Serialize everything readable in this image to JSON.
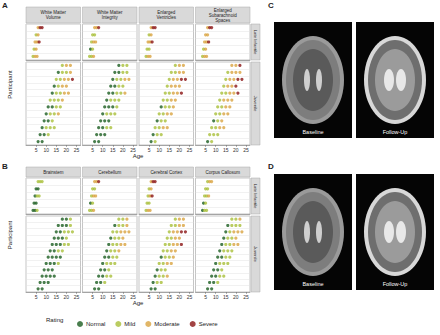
{
  "chart_data": [
    {
      "type": "scatter",
      "label": "A",
      "xlabel": "Age",
      "ylabel": "Participant",
      "xlim": [
        0,
        27
      ],
      "xticks": [
        5,
        10,
        15,
        20,
        25
      ],
      "tick_labels": "x",
      "grid": true,
      "groups": [
        "Late Infantile",
        "Juvenile"
      ],
      "rating_levels": [
        {
          "name": "Normal",
          "color": "#1b5e20"
        },
        {
          "name": "Mild",
          "color": "#a9bf3a"
        },
        {
          "name": "Moderate",
          "color": "#d9a441"
        },
        {
          "name": "Severe",
          "color": "#8b1414"
        }
      ],
      "ages": [
        [
          [
            3.5,
            4.5,
            5.5
          ],
          [
            4,
            5
          ],
          [
            4.5,
            5.5,
            6.5
          ],
          [
            5,
            6
          ],
          [
            6,
            7,
            8
          ]
        ],
        [
          [
            6,
            8
          ],
          [
            7,
            9,
            11
          ],
          [
            8,
            10,
            12,
            14
          ],
          [
            9,
            11,
            13
          ],
          [
            10,
            12,
            14,
            16
          ],
          [
            11,
            13,
            15,
            17
          ],
          [
            12,
            14,
            16,
            18
          ],
          [
            13,
            15,
            17,
            19,
            21
          ],
          [
            14,
            16,
            18,
            20
          ],
          [
            15,
            17,
            19,
            21,
            23
          ],
          [
            16,
            18,
            20,
            22
          ],
          [
            18,
            20,
            22
          ]
        ]
      ],
      "panels": [
        {
          "title": "White Matter\nVolume",
          "ratings": [
            [
              [
                1,
                2,
                2
              ],
              [
                1,
                2
              ],
              [
                2,
                2,
                3
              ],
              [
                1,
                2
              ],
              [
                2,
                3,
                3
              ]
            ],
            [
              [
                0,
                0
              ],
              [
                0,
                0,
                1
              ],
              [
                0,
                1,
                1,
                1
              ],
              [
                0,
                0,
                1
              ],
              [
                0,
                1,
                1,
                2
              ],
              [
                0,
                0,
                1,
                1
              ],
              [
                1,
                1,
                1,
                2
              ],
              [
                0,
                1,
                1,
                2,
                2
              ],
              [
                0,
                1,
                2,
                2
              ],
              [
                1,
                1,
                2,
                2,
                3
              ],
              [
                0,
                1,
                1,
                2
              ],
              [
                1,
                2,
                2
              ]
            ]
          ]
        },
        {
          "title": "White Matter\nIntegrity",
          "ratings": [
            [
              [
                1,
                1,
                2
              ],
              [
                0,
                1
              ],
              [
                1,
                2,
                2
              ],
              [
                1,
                1
              ],
              [
                2,
                2,
                3
              ]
            ],
            [
              [
                0,
                0
              ],
              [
                0,
                0,
                0
              ],
              [
                0,
                0,
                1,
                1
              ],
              [
                0,
                0,
                0
              ],
              [
                0,
                1,
                1,
                1
              ],
              [
                0,
                0,
                0,
                1
              ],
              [
                0,
                1,
                1,
                1
              ],
              [
                0,
                0,
                1,
                1,
                2
              ],
              [
                0,
                0,
                1,
                1
              ],
              [
                0,
                1,
                1,
                2,
                2
              ],
              [
                0,
                0,
                1,
                1
              ],
              [
                0,
                1,
                1
              ]
            ]
          ]
        },
        {
          "title": "Enlarged\nVentricles",
          "ratings": [
            [
              [
                1,
                2,
                2
              ],
              [
                1,
                1
              ],
              [
                2,
                2,
                3
              ],
              [
                1,
                2
              ],
              [
                2,
                3,
                3
              ]
            ],
            [
              [
                0,
                1
              ],
              [
                0,
                1,
                1
              ],
              [
                1,
                1,
                2,
                2
              ],
              [
                0,
                1,
                1
              ],
              [
                1,
                1,
                2,
                2
              ],
              [
                0,
                1,
                1,
                2
              ],
              [
                1,
                1,
                2,
                2
              ],
              [
                1,
                1,
                2,
                2,
                3
              ],
              [
                1,
                2,
                2,
                2
              ],
              [
                1,
                2,
                2,
                3,
                3
              ],
              [
                1,
                1,
                2,
                2
              ],
              [
                1,
                2,
                2
              ]
            ]
          ]
        },
        {
          "title": "Enlarged\nSubarachnoid\nSpaces",
          "ratings": [
            [
              [
                1,
                2,
                2
              ],
              [
                1,
                2
              ],
              [
                2,
                2,
                3
              ],
              [
                2,
                2
              ],
              [
                2,
                3,
                3
              ]
            ],
            [
              [
                0,
                1
              ],
              [
                1,
                1,
                1
              ],
              [
                1,
                1,
                2,
                2
              ],
              [
                0,
                1,
                2
              ],
              [
                1,
                1,
                2,
                2
              ],
              [
                1,
                1,
                2,
                2
              ],
              [
                1,
                2,
                2,
                2
              ],
              [
                1,
                1,
                2,
                2,
                3
              ],
              [
                1,
                2,
                2,
                3
              ],
              [
                1,
                2,
                2,
                3,
                3
              ],
              [
                1,
                2,
                2,
                2
              ],
              [
                2,
                2,
                3
              ]
            ]
          ]
        }
      ]
    },
    {
      "type": "scatter",
      "label": "B",
      "xlabel": "Age",
      "ylabel": "Participant",
      "xlim": [
        0,
        27
      ],
      "xticks": [
        5,
        10,
        15,
        20,
        25
      ],
      "tick_labels": "x",
      "grid": true,
      "legend": "bottom",
      "legend_title": "Rating",
      "groups": [
        "Late Infantile",
        "Juvenile"
      ],
      "rating_levels": [
        {
          "name": "Normal",
          "color": "#1b5e20"
        },
        {
          "name": "Mild",
          "color": "#a9bf3a"
        },
        {
          "name": "Moderate",
          "color": "#d9a441"
        },
        {
          "name": "Severe",
          "color": "#8b1414"
        }
      ],
      "ages": [
        [
          [
            3.5,
            4.5,
            5.5
          ],
          [
            4,
            5
          ],
          [
            4.5,
            5.5,
            6.5
          ],
          [
            5,
            6
          ],
          [
            6,
            7,
            8
          ]
        ],
        [
          [
            6,
            8
          ],
          [
            7,
            9,
            11
          ],
          [
            8,
            10,
            12,
            14
          ],
          [
            9,
            11,
            13
          ],
          [
            10,
            12,
            14,
            16
          ],
          [
            11,
            13,
            15,
            17
          ],
          [
            12,
            14,
            16,
            18
          ],
          [
            13,
            15,
            17,
            19,
            21
          ],
          [
            14,
            16,
            18,
            20
          ],
          [
            15,
            17,
            19,
            21,
            23
          ],
          [
            16,
            18,
            20,
            22
          ],
          [
            18,
            20,
            22
          ]
        ]
      ],
      "panels": [
        {
          "title": "Brainstem",
          "ratings": [
            [
              [
                0,
                0,
                1
              ],
              [
                0,
                0
              ],
              [
                0,
                1,
                1
              ],
              [
                0,
                0
              ],
              [
                1,
                1,
                1
              ]
            ],
            [
              [
                0,
                0
              ],
              [
                0,
                0,
                0
              ],
              [
                0,
                0,
                0,
                0
              ],
              [
                0,
                0,
                0
              ],
              [
                0,
                0,
                0,
                1
              ],
              [
                0,
                0,
                0,
                0
              ],
              [
                0,
                0,
                1,
                1
              ],
              [
                0,
                0,
                0,
                1,
                1
              ],
              [
                0,
                0,
                0,
                1
              ],
              [
                0,
                0,
                1,
                1,
                1
              ],
              [
                0,
                0,
                0,
                1
              ],
              [
                0,
                0,
                1
              ]
            ]
          ]
        },
        {
          "title": "Cerebellum",
          "ratings": [
            [
              [
                1,
                1,
                2
              ],
              [
                0,
                1
              ],
              [
                1,
                2,
                2
              ],
              [
                1,
                1
              ],
              [
                2,
                2,
                3
              ]
            ],
            [
              [
                0,
                0
              ],
              [
                0,
                0,
                1
              ],
              [
                0,
                0,
                1,
                1
              ],
              [
                0,
                0,
                1
              ],
              [
                0,
                1,
                1,
                1
              ],
              [
                0,
                0,
                1,
                1
              ],
              [
                0,
                1,
                1,
                2
              ],
              [
                0,
                1,
                1,
                2,
                2
              ],
              [
                0,
                1,
                1,
                2
              ],
              [
                1,
                1,
                2,
                2,
                2
              ],
              [
                0,
                1,
                1,
                2
              ],
              [
                1,
                1,
                2
              ]
            ]
          ]
        },
        {
          "title": "Cerebral Cortex",
          "ratings": [
            [
              [
                1,
                2,
                2
              ],
              [
                1,
                1
              ],
              [
                1,
                2,
                3
              ],
              [
                1,
                2
              ],
              [
                2,
                3,
                3
              ]
            ],
            [
              [
                0,
                0
              ],
              [
                0,
                1,
                1
              ],
              [
                0,
                1,
                1,
                2
              ],
              [
                0,
                1,
                1
              ],
              [
                1,
                1,
                2,
                2
              ],
              [
                0,
                1,
                1,
                2
              ],
              [
                1,
                1,
                2,
                2
              ],
              [
                1,
                1,
                2,
                2,
                3
              ],
              [
                1,
                1,
                2,
                2
              ],
              [
                1,
                2,
                2,
                3,
                3
              ],
              [
                1,
                1,
                2,
                2
              ],
              [
                1,
                2,
                2
              ]
            ]
          ]
        },
        {
          "title": "Corpus Callosum",
          "ratings": [
            [
              [
                0,
                1,
                1
              ],
              [
                0,
                1
              ],
              [
                1,
                1,
                2
              ],
              [
                1,
                1
              ],
              [
                1,
                2,
                2
              ]
            ],
            [
              [
                0,
                0
              ],
              [
                0,
                0,
                1
              ],
              [
                0,
                0,
                1,
                1
              ],
              [
                0,
                0,
                1
              ],
              [
                0,
                1,
                1,
                1
              ],
              [
                0,
                0,
                1,
                1
              ],
              [
                0,
                1,
                1,
                1
              ],
              [
                0,
                1,
                1,
                2,
                2
              ],
              [
                0,
                1,
                1,
                2
              ],
              [
                0,
                1,
                2,
                2,
                2
              ],
              [
                0,
                1,
                1,
                1
              ],
              [
                1,
                1,
                2
              ]
            ]
          ]
        }
      ]
    }
  ],
  "image_panels": [
    {
      "label": "C",
      "images": [
        "Baseline",
        "Follow-Up"
      ]
    },
    {
      "label": "D",
      "images": [
        "Baseline",
        "Follow-Up"
      ]
    }
  ]
}
